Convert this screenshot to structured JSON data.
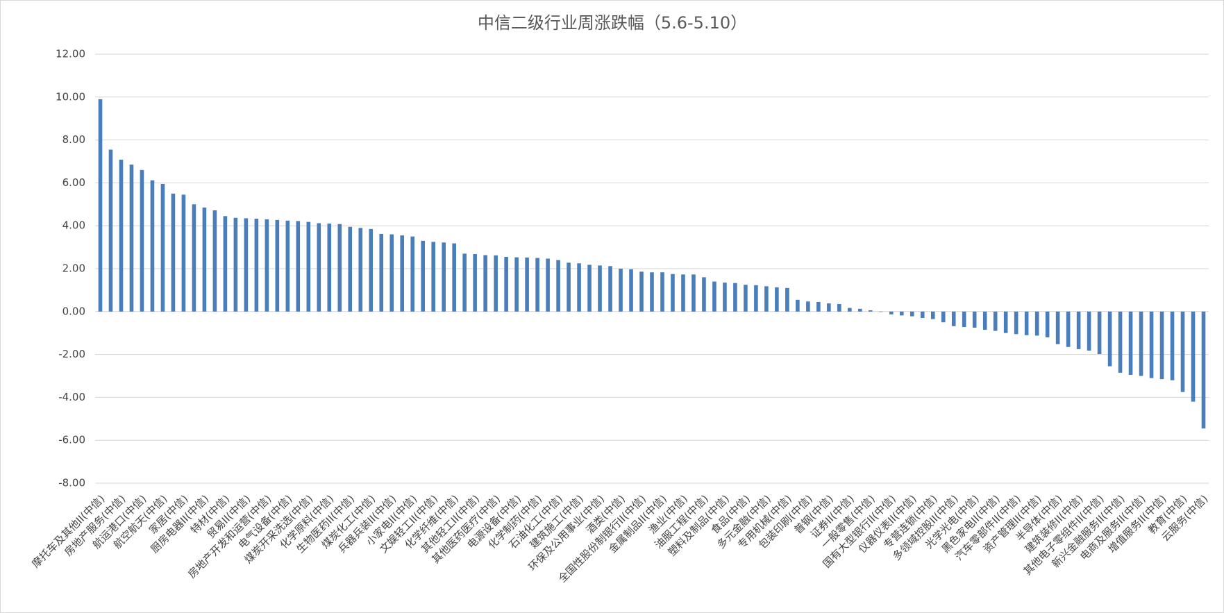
{
  "chart_data": {
    "type": "bar",
    "title": "中信二级行业周涨跌幅（5.6-5.10）",
    "categories": [
      "摩托车及其他II(中信)",
      null,
      "房地产服务(中信)",
      null,
      "航运港口(中信)",
      null,
      "航空航天(中信)",
      null,
      "家居(中信)",
      null,
      "厨房电器II(中信)",
      null,
      "特材(中信)",
      null,
      "贸易II(中信)",
      null,
      "房地产开发和运营(中信)",
      null,
      "电气设备(中信)",
      null,
      "煤炭开采洗选(中信)",
      null,
      "化学原料(中信)",
      null,
      "生物医药II(中信)",
      null,
      "煤炭化工(中信)",
      null,
      "兵器兵装II(中信)",
      null,
      "小家电II(中信)",
      null,
      "文娱轻工II(中信)",
      null,
      "化学纤维(中信)",
      null,
      "其他轻工II(中信)",
      null,
      "其他医药医疗(中信)",
      null,
      "电源设备(中信)",
      null,
      "化学制药(中信)",
      null,
      "石油化工(中信)",
      null,
      "建筑施工(中信)",
      null,
      "环保及公用事业(中信)",
      null,
      "酒类(中信)",
      null,
      "全国性股份制银行II(中信)",
      null,
      "金属制品II(中信)",
      null,
      "渔业(中信)",
      null,
      "油服工程(中信)",
      null,
      "塑料及制品(中信)",
      null,
      "食品(中信)",
      null,
      "多元金融(中信)",
      null,
      "专用机械(中信)",
      null,
      "包装印刷(中信)",
      null,
      "普钢(中信)",
      null,
      "证券II(中信)",
      null,
      "一般零售(中信)",
      null,
      "国有大型银行II(中信)",
      null,
      "仪器仪表II(中信)",
      null,
      "专营连锁(中信)",
      null,
      "多领域控股II(中信)",
      null,
      "光学光电(中信)",
      null,
      "黑色家电II(中信)",
      null,
      "汽车零部件II(中信)",
      null,
      "资产管理II(中信)",
      null,
      "半导体(中信)",
      null,
      "建筑装修II(中信)",
      null,
      "其他电子零组件II(中信)",
      null,
      "新兴金融服务II(中信)",
      null,
      "电商及服务II(中信)",
      null,
      "增值服务II(中信)",
      null,
      "教育(中信)",
      null,
      "云服务(中信)"
    ],
    "values": [
      9.9,
      7.55,
      7.08,
      6.85,
      6.6,
      6.12,
      5.95,
      5.5,
      5.45,
      5.0,
      4.85,
      4.72,
      4.45,
      4.37,
      4.35,
      4.33,
      4.3,
      4.27,
      4.24,
      4.22,
      4.18,
      4.12,
      4.1,
      4.08,
      3.95,
      3.9,
      3.85,
      3.62,
      3.6,
      3.55,
      3.5,
      3.3,
      3.25,
      3.22,
      3.18,
      2.7,
      2.68,
      2.63,
      2.62,
      2.55,
      2.53,
      2.52,
      2.5,
      2.47,
      2.4,
      2.28,
      2.25,
      2.18,
      2.15,
      2.12,
      2.0,
      1.97,
      1.86,
      1.83,
      1.83,
      1.75,
      1.73,
      1.73,
      1.6,
      1.4,
      1.35,
      1.33,
      1.25,
      1.23,
      1.18,
      1.13,
      1.1,
      0.55,
      0.47,
      0.45,
      0.38,
      0.35,
      0.17,
      0.13,
      0.06,
      -0.02,
      -0.13,
      -0.18,
      -0.22,
      -0.3,
      -0.35,
      -0.5,
      -0.68,
      -0.72,
      -0.75,
      -0.85,
      -0.9,
      -1.0,
      -1.05,
      -1.1,
      -1.12,
      -1.2,
      -1.52,
      -1.65,
      -1.75,
      -1.82,
      -1.98,
      -2.55,
      -2.85,
      -2.95,
      -3.0,
      -3.1,
      -3.15,
      -3.2,
      -3.75,
      -4.2,
      -5.45
    ],
    "color": "#4a7ebb",
    "ylim": [
      -8,
      12
    ],
    "yticks": [
      {
        "value": -8,
        "label": "-8.00"
      },
      {
        "value": -6,
        "label": "-6.00"
      },
      {
        "value": -4,
        "label": "-4.00"
      },
      {
        "value": -2,
        "label": "-2.00"
      },
      {
        "value": 0,
        "label": "0.00"
      },
      {
        "value": 2,
        "label": "2.00"
      },
      {
        "value": 4,
        "label": "4.00"
      },
      {
        "value": 6,
        "label": "6.00"
      },
      {
        "value": 8,
        "label": "8.00"
      },
      {
        "value": 10,
        "label": "10.00"
      },
      {
        "value": 12,
        "label": "12.00"
      }
    ],
    "grid": true
  }
}
